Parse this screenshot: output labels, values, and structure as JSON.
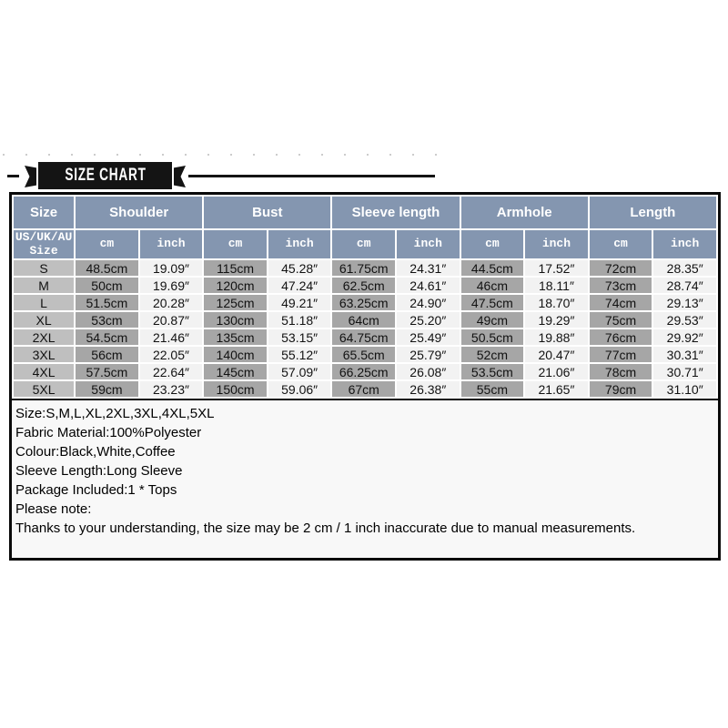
{
  "banner": {
    "title": "SIZE CHART"
  },
  "colors": {
    "ink": "#141414",
    "border": "#0a0a0a",
    "header_bg": "#8496b0",
    "size_col_bg": "#bfbfbf",
    "cm_col_bg": "#a6a6a6",
    "inch_col_bg": "#f2f2f2"
  },
  "table": {
    "groups": [
      {
        "label": "Size"
      },
      {
        "label": "Shoulder"
      },
      {
        "label": "Bust"
      },
      {
        "label": "Sleeve length"
      },
      {
        "label": "Armhole"
      },
      {
        "label": "Length"
      }
    ],
    "size_subheader": "US/UK/AU Size",
    "units": {
      "cm": "cm",
      "inch": "inch"
    },
    "rows": [
      {
        "size": "S",
        "values": [
          "48.5cm",
          "19.09″",
          "115cm",
          "45.28″",
          "61.75cm",
          "24.31″",
          "44.5cm",
          "17.52″",
          "72cm",
          "28.35″"
        ]
      },
      {
        "size": "M",
        "values": [
          "50cm",
          "19.69″",
          "120cm",
          "47.24″",
          "62.5cm",
          "24.61″",
          "46cm",
          "18.11″",
          "73cm",
          "28.74″"
        ]
      },
      {
        "size": "L",
        "values": [
          "51.5cm",
          "20.28″",
          "125cm",
          "49.21″",
          "63.25cm",
          "24.90″",
          "47.5cm",
          "18.70″",
          "74cm",
          "29.13″"
        ]
      },
      {
        "size": "XL",
        "values": [
          "53cm",
          "20.87″",
          "130cm",
          "51.18″",
          "64cm",
          "25.20″",
          "49cm",
          "19.29″",
          "75cm",
          "29.53″"
        ]
      },
      {
        "size": "2XL",
        "values": [
          "54.5cm",
          "21.46″",
          "135cm",
          "53.15″",
          "64.75cm",
          "25.49″",
          "50.5cm",
          "19.88″",
          "76cm",
          "29.92″"
        ]
      },
      {
        "size": "3XL",
        "values": [
          "56cm",
          "22.05″",
          "140cm",
          "55.12″",
          "65.5cm",
          "25.79″",
          "52cm",
          "20.47″",
          "77cm",
          "30.31″"
        ]
      },
      {
        "size": "4XL",
        "values": [
          "57.5cm",
          "22.64″",
          "145cm",
          "57.09″",
          "66.25cm",
          "26.08″",
          "53.5cm",
          "21.06″",
          "78cm",
          "30.71″"
        ]
      },
      {
        "size": "5XL",
        "values": [
          "59cm",
          "23.23″",
          "150cm",
          "59.06″",
          "67cm",
          "26.38″",
          "55cm",
          "21.65″",
          "79cm",
          "31.10″"
        ]
      }
    ]
  },
  "notes": {
    "lines": [
      "Size:S,M,L,XL,2XL,3XL,4XL,5XL",
      "Fabric Material:100%Polyester",
      "Colour:Black,White,Coffee",
      "Sleeve Length:Long Sleeve",
      "Package Included:1 * Tops",
      "Please note:",
      "Thanks to your understanding, the size may be 2 cm / 1 inch inaccurate due to manual measurements."
    ]
  }
}
